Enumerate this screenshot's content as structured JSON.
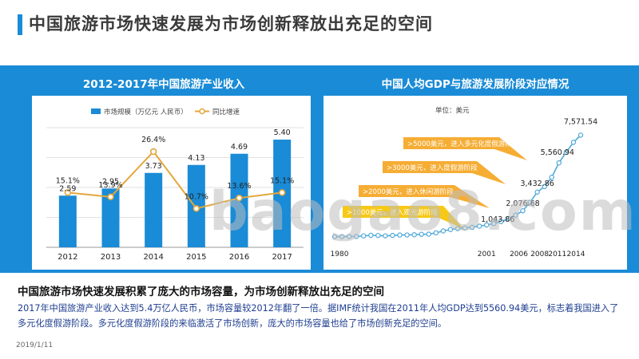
{
  "title": "中国旅游市场快速发展为市场创新释放出充足的空间",
  "left_panel": {
    "title": "2012-2017年中国旅游产业收入"
  },
  "right_panel": {
    "title": "中国人均GDP与旅游发展阶段对应情况",
    "unit": "单位：美元"
  },
  "subheading": "中国旅游市场快速发展积累了庞大的市场容量，为市场创新释放出充足的空间",
  "paragraph": "2017年中国旅游产业收入达到5.4万亿人民币，市场容量较2012年翻了一倍。据IMF统计我国在2011年人均GDP达到5560.94美元，标志着我国进入了多元化度假游阶段。多元化度假游阶段的来临激活了市场创新，庞大的市场容量也给了市场创新充足的空间。",
  "date": "2019/1/11",
  "watermark": "baogao8.com",
  "colors": {
    "accent": "#1a8bd6",
    "bar": "#1a8bd6",
    "line": "#e3a73b",
    "orange": "#f5a623",
    "yellow": "#f7c400",
    "curve": "#4fa9d8"
  },
  "chart_data": [
    {
      "type": "bar",
      "categories": [
        "2012",
        "2013",
        "2014",
        "2015",
        "2016",
        "2017"
      ],
      "series": [
        {
          "name": "市场规模（万亿元 人民币）",
          "type": "bar",
          "values": [
            2.59,
            2.95,
            3.73,
            4.13,
            4.69,
            5.4
          ],
          "labels": [
            "2.59",
            "2.95",
            "3.73",
            "4.13",
            "4.69",
            "5.40"
          ]
        },
        {
          "name": "同比增速",
          "type": "line",
          "values": [
            15.1,
            13.9,
            26.4,
            10.7,
            13.6,
            15.1
          ],
          "labels": [
            "15.1%",
            "13.9%",
            "26.4%",
            "10.7%",
            "13.6%",
            "15.1%"
          ]
        }
      ],
      "ylim": [
        0,
        6
      ],
      "y2lim": [
        0,
        33
      ],
      "legend": "top-center",
      "grid": true
    },
    {
      "type": "line",
      "x_start": 1980,
      "x_end": 2014,
      "x_tick_labels": [
        "1980",
        "2001",
        "2006",
        "2008",
        "2011",
        "2014"
      ],
      "x_tick_values": [
        1980,
        2001,
        2006,
        2008,
        2011,
        2014
      ],
      "ylim": [
        0,
        8000
      ],
      "values": [
        195,
        198,
        203,
        210,
        252,
        290,
        280,
        252,
        285,
        311,
        318,
        333,
        366,
        377,
        473,
        609,
        709,
        782,
        828,
        873,
        959,
        1043.86,
        1148,
        1288,
        1508,
        1753,
        2076.68,
        2693,
        3432.86,
        3833,
        4514,
        5560.94,
        6329,
        7051,
        7571.54
      ],
      "point_labels": [
        {
          "year": 2001,
          "text": "1,043.86"
        },
        {
          "year": 2006,
          "text": "2,076.68"
        },
        {
          "year": 2008,
          "text": "3,432.86"
        },
        {
          "year": 2011,
          "text": "5,560.94"
        },
        {
          "year": 2014,
          "text": "7,571.54"
        }
      ],
      "annotations": [
        {
          "text": ">5000美元，进入多元化度假游阶段",
          "color": "#f5a623"
        },
        {
          "text": ">3000美元，进入度假游阶段",
          "color": "#f5a623"
        },
        {
          "text": ">2000美元，进入休闲游阶段",
          "color": "#f5a623"
        },
        {
          "text": ">1000美元，进入观光游阶段",
          "color": "#f7c400"
        }
      ]
    }
  ]
}
